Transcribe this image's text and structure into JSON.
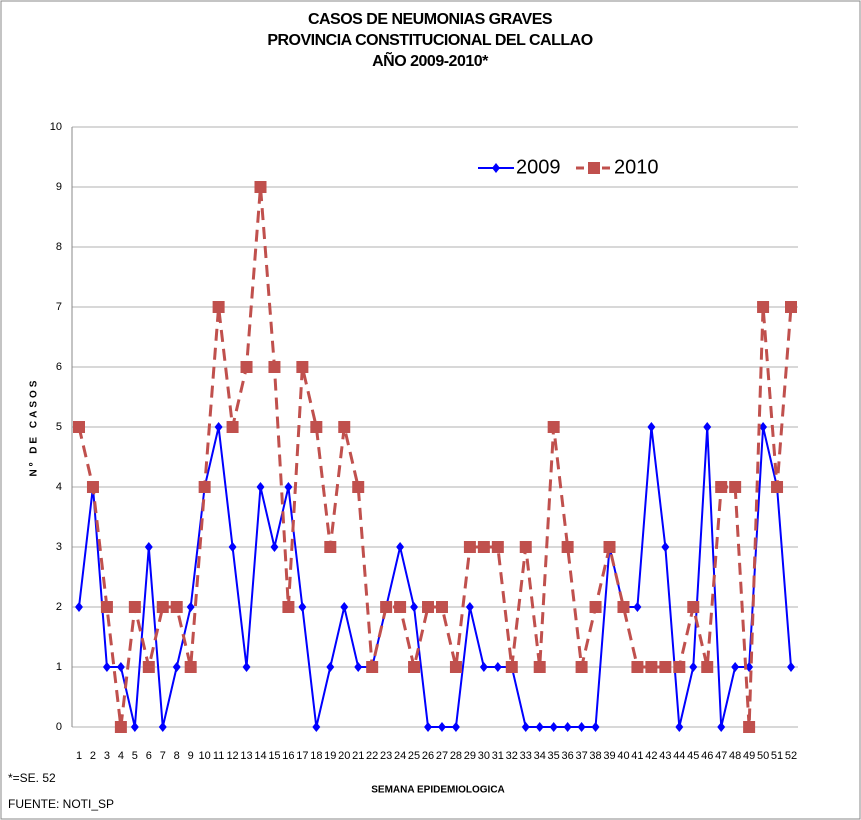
{
  "chart_data": {
    "type": "line",
    "title": [
      "CASOS DE NEUMONIAS GRAVES",
      "PROVINCIA CONSTITUCIONAL DEL CALLAO",
      "AÑO 2009-2010*"
    ],
    "y_label": "Nº DE CASOS",
    "x_label": "SEMANA EPIDEMIOLOGICA",
    "footnotes": [
      "*=SE. 52",
      "FUENTE: NOTI_SP"
    ],
    "categories": [
      "1",
      "2",
      "3",
      "4",
      "5",
      "6",
      "7",
      "8",
      "9",
      "10",
      "11",
      "12",
      "13",
      "14",
      "15",
      "16",
      "17",
      "18",
      "19",
      "20",
      "21",
      "22",
      "23",
      "24",
      "25",
      "26",
      "27",
      "28",
      "29",
      "30",
      "31",
      "32",
      "33",
      "34",
      "35",
      "36",
      "37",
      "38",
      "39",
      "40",
      "41",
      "42",
      "43",
      "44",
      "45",
      "46",
      "47",
      "48",
      "49",
      "50",
      "51",
      "52"
    ],
    "series": [
      {
        "name": "2009",
        "color": "#0000ff",
        "dash": false,
        "values": [
          2,
          4,
          1,
          1,
          0,
          3,
          0,
          1,
          2,
          4,
          5,
          3,
          1,
          4,
          3,
          4,
          2,
          0,
          1,
          2,
          1,
          1,
          2,
          3,
          2,
          0,
          0,
          0,
          2,
          1,
          1,
          1,
          0,
          0,
          0,
          0,
          0,
          0,
          3,
          2,
          2,
          5,
          3,
          0,
          1,
          5,
          0,
          1,
          1,
          5,
          4,
          1
        ]
      },
      {
        "name": "2010",
        "color": "#c0504d",
        "dash": true,
        "values": [
          5,
          4,
          2,
          0,
          2,
          1,
          2,
          2,
          1,
          4,
          7,
          5,
          6,
          9,
          6,
          2,
          6,
          5,
          3,
          5,
          4,
          1,
          2,
          2,
          1,
          2,
          2,
          1,
          3,
          3,
          3,
          1,
          3,
          1,
          5,
          3,
          1,
          2,
          3,
          2,
          1,
          1,
          1,
          1,
          2,
          1,
          4,
          4,
          0,
          7,
          4,
          7
        ]
      }
    ],
    "ylim": [
      0,
      10
    ],
    "yticks": [
      0,
      1,
      2,
      3,
      4,
      5,
      6,
      7,
      8,
      9,
      10
    ],
    "grid": true,
    "legend": "top-right"
  }
}
